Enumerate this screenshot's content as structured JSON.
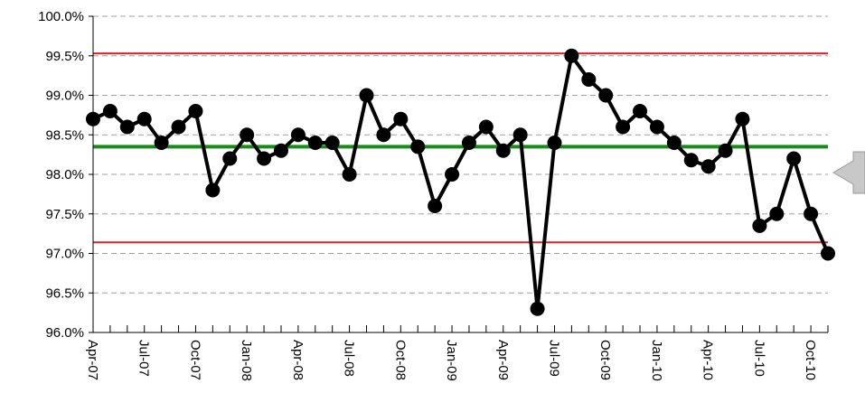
{
  "chart_data": {
    "type": "line",
    "categories": [
      "Apr-07",
      null,
      null,
      "Jul-07",
      null,
      null,
      "Oct-07",
      null,
      null,
      "Jan-08",
      null,
      null,
      "Apr-08",
      null,
      null,
      "Jul-08",
      null,
      null,
      "Oct-08",
      null,
      null,
      "Jan-09",
      null,
      null,
      "Apr-09",
      null,
      null,
      "Jul-09",
      null,
      null,
      "Oct-09",
      null,
      null,
      "Jan-10",
      null,
      null,
      "Apr-10",
      null,
      null,
      "Jul-10",
      null,
      null,
      "Oct-10",
      null
    ],
    "series": [
      {
        "color": "#000000",
        "values": [
          98.7,
          98.8,
          98.6,
          98.7,
          98.4,
          98.6,
          98.8,
          97.8,
          98.2,
          98.5,
          98.2,
          98.3,
          98.5,
          98.4,
          98.4,
          98.0,
          99.0,
          98.5,
          98.7,
          98.35,
          97.6,
          98.0,
          98.4,
          98.6,
          98.3,
          98.5,
          96.3,
          98.4,
          99.5,
          99.2,
          99.0,
          98.6,
          98.8,
          98.6,
          98.4,
          98.18,
          98.1,
          98.3,
          98.7,
          97.35,
          97.5,
          98.2,
          97.5,
          97.0
        ]
      }
    ],
    "reference_lines": [
      {
        "value": 99.53,
        "color": "#e02020"
      },
      {
        "value": 98.35,
        "color": "#1a8a1a"
      },
      {
        "value": 97.14,
        "color": "#e02020"
      }
    ],
    "ylim": [
      96.0,
      100.0
    ],
    "yticks": [
      {
        "value": 96.0,
        "label": "96.0%"
      },
      {
        "value": 96.5,
        "label": "96.5%"
      },
      {
        "value": 97.0,
        "label": "97.0%"
      },
      {
        "value": 97.5,
        "label": "97.5%"
      },
      {
        "value": 98.0,
        "label": "98.0%"
      },
      {
        "value": 98.5,
        "label": "98.5%"
      },
      {
        "value": 99.0,
        "label": "99.0%"
      },
      {
        "value": 99.5,
        "label": "99.5%"
      },
      {
        "value": 100.0,
        "label": "100.0%"
      }
    ],
    "grid": true
  }
}
